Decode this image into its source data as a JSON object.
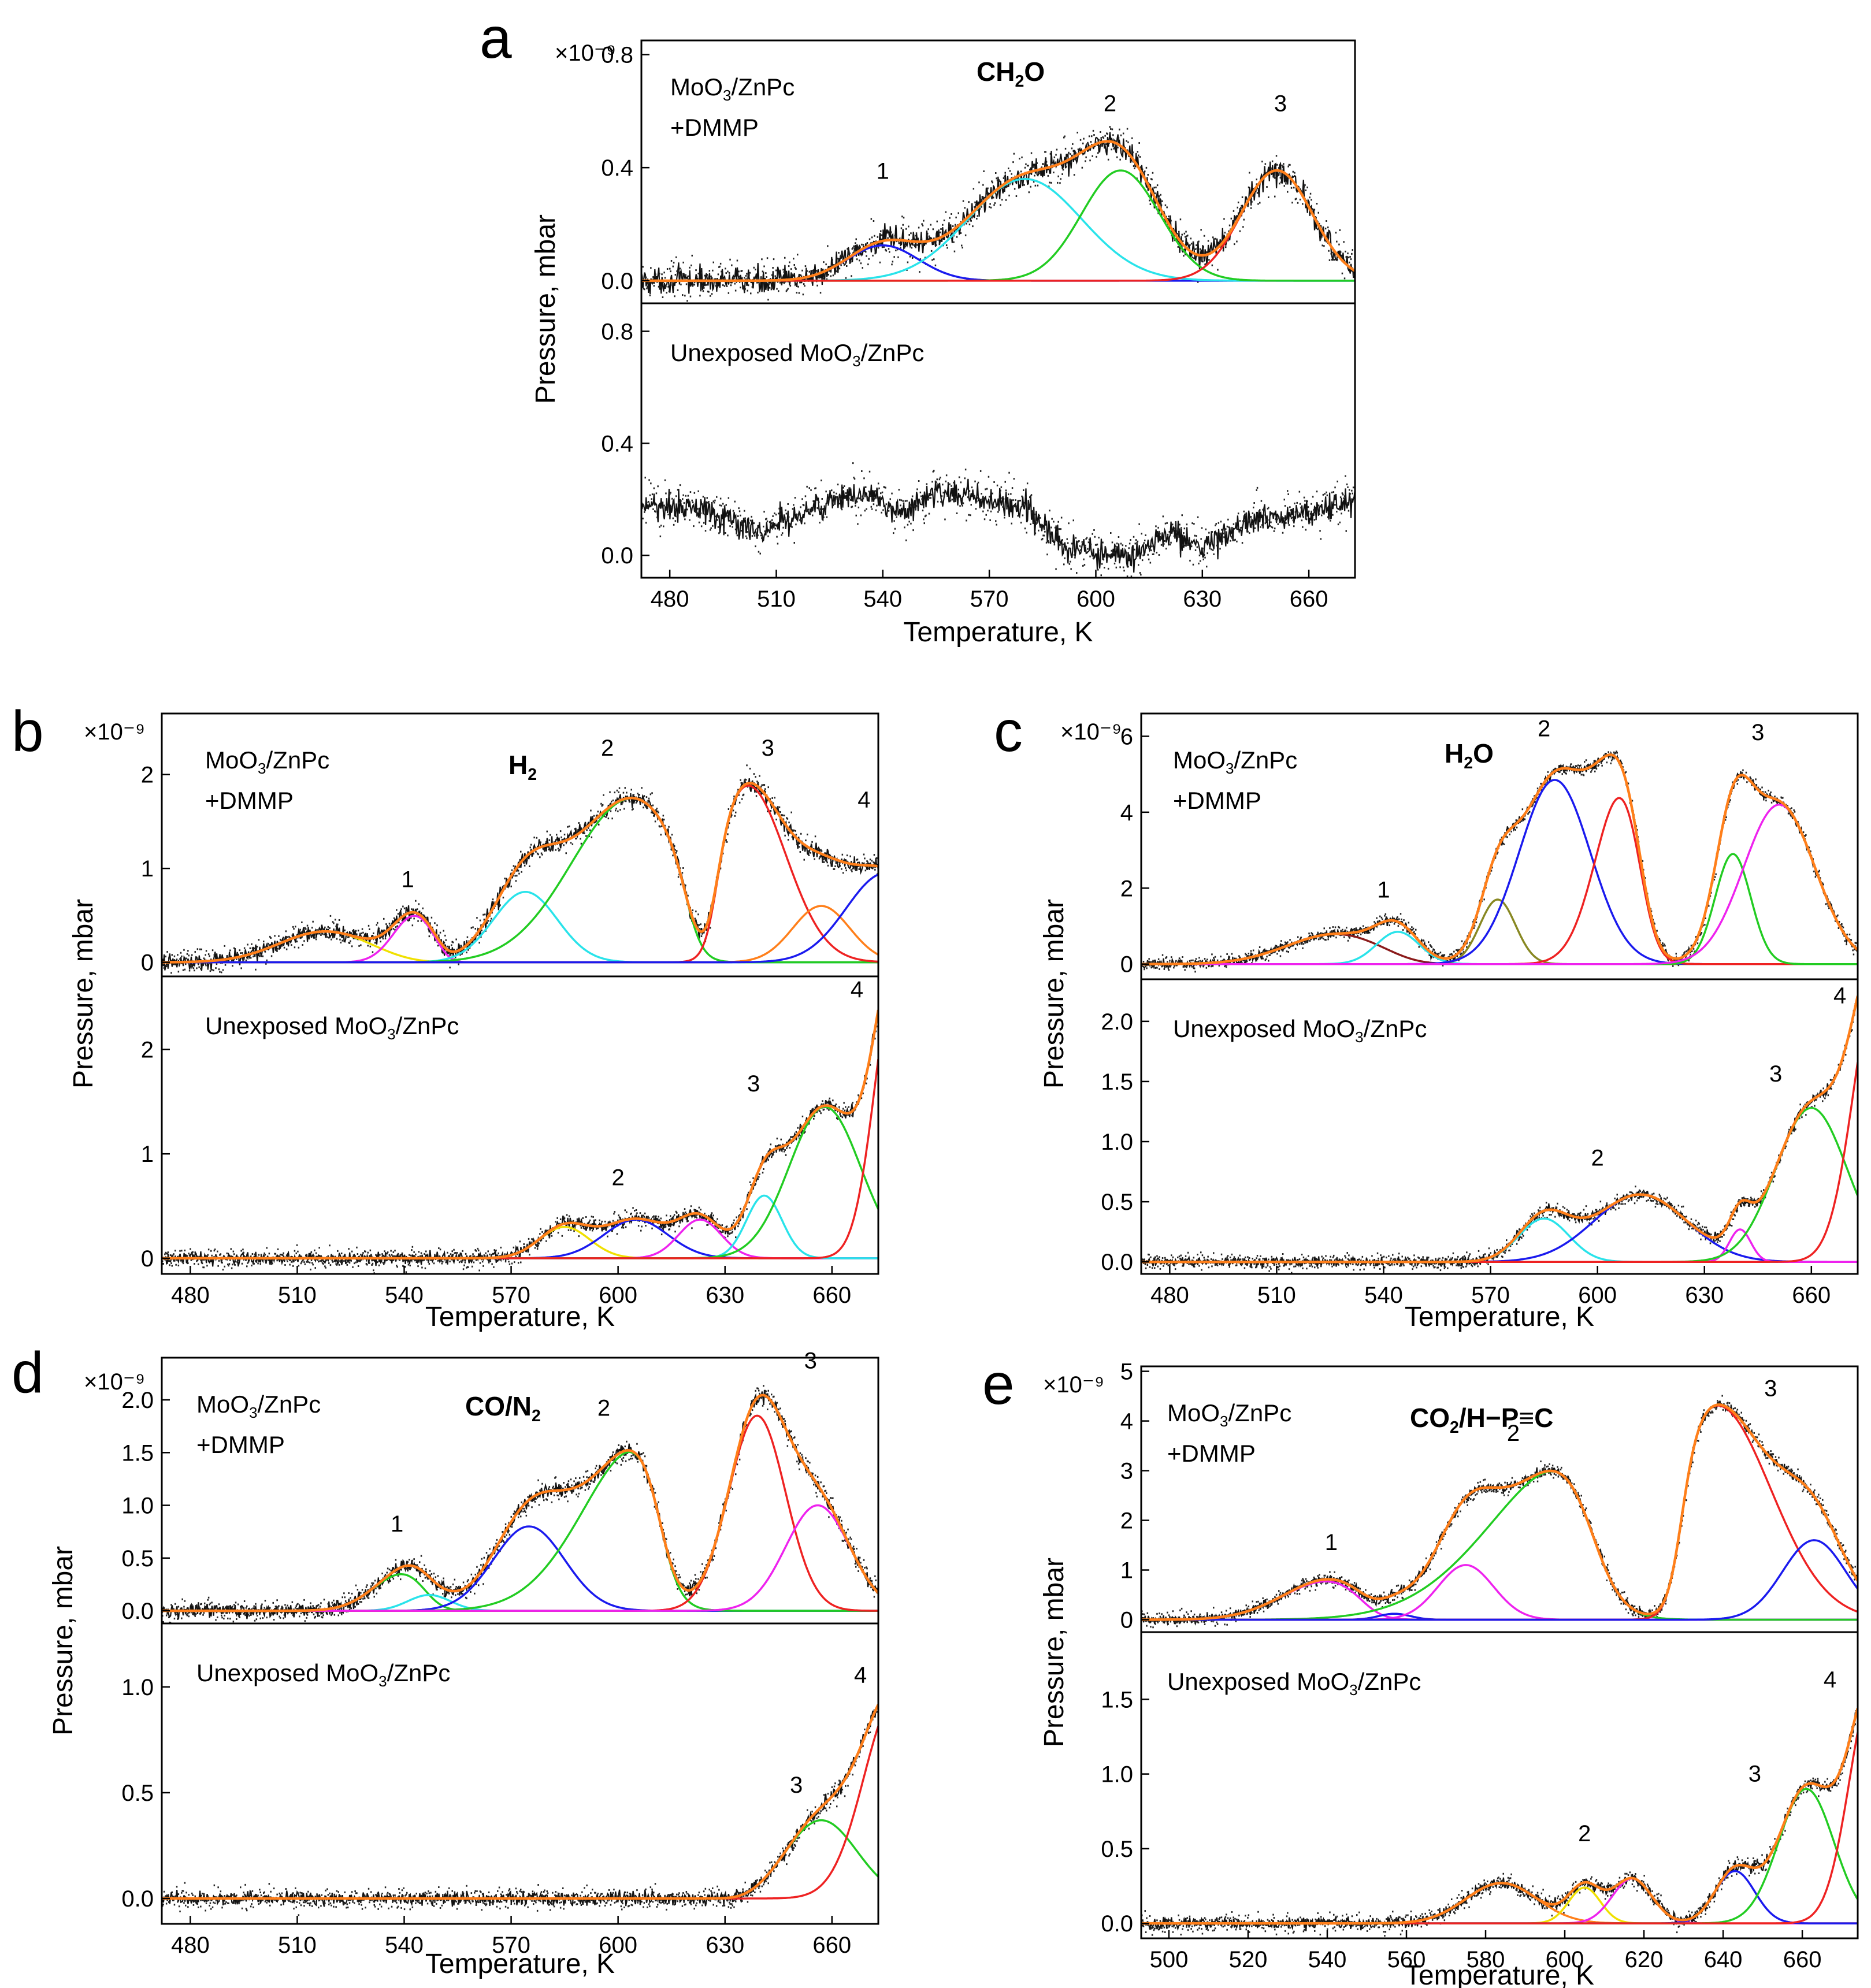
{
  "chart_data": [
    {
      "id": "a",
      "type": "line",
      "panel_letter": "a",
      "species": "CH₂O",
      "xlabel": "Temperature, K",
      "ylabel": "Pressure, mbar",
      "scale_note": "×10⁻⁹",
      "x_range": [
        472,
        673
      ],
      "x_ticks": [
        480,
        510,
        540,
        570,
        600,
        630,
        660
      ],
      "subplots": [
        {
          "label_lines": [
            "MoO₃/ZnPc",
            "+DMMP"
          ],
          "y_range": [
            -0.08,
            0.85
          ],
          "y_ticks": [
            0.0,
            0.4,
            0.8
          ],
          "y_tick_labels": [
            "0.0",
            "0.4",
            "0.8"
          ],
          "peak_labels": [
            {
              "text": "1",
              "x": 540,
              "y": 0.36
            },
            {
              "text": "2",
              "x": 604,
              "y": 0.6
            },
            {
              "text": "3",
              "x": 652,
              "y": 0.6
            }
          ],
          "components": [
            {
              "color": "#1a1aee",
              "center": 540,
              "height": 0.125,
              "width": 10
            },
            {
              "color": "#29e3ea",
              "center": 580,
              "height": 0.36,
              "width": 16
            },
            {
              "color": "#22cc22",
              "center": 607,
              "height": 0.39,
              "width": 11
            },
            {
              "color": "#ee2222",
              "center": 651,
              "height": 0.39,
              "width": 10
            }
          ],
          "noise": 0.07
        },
        {
          "label_lines": [
            "Unexposed MoO₃/ZnPc"
          ],
          "y_range": [
            -0.08,
            0.9
          ],
          "y_ticks": [
            0.0,
            0.4,
            0.8
          ],
          "y_tick_labels": [
            "0.0",
            "0.4",
            "0.8"
          ],
          "peak_labels": [],
          "components": [],
          "raw_trace": [
            [
              472,
              0.18
            ],
            [
              490,
              0.16
            ],
            [
              505,
              0.08
            ],
            [
              520,
              0.17
            ],
            [
              535,
              0.22
            ],
            [
              545,
              0.15
            ],
            [
              555,
              0.23
            ],
            [
              568,
              0.2
            ],
            [
              580,
              0.17
            ],
            [
              590,
              0.04
            ],
            [
              600,
              0.02
            ],
            [
              610,
              -0.01
            ],
            [
              620,
              0.08
            ],
            [
              630,
              0.03
            ],
            [
              645,
              0.13
            ],
            [
              660,
              0.15
            ],
            [
              673,
              0.2
            ]
          ],
          "noise": 0.08
        }
      ]
    },
    {
      "id": "b",
      "type": "line",
      "panel_letter": "b",
      "species": "H₂",
      "xlabel": "Temperature, K",
      "ylabel": "Pressure, mbar",
      "scale_note": "×10⁻⁹",
      "x_range": [
        472,
        673
      ],
      "x_ticks": [
        480,
        510,
        540,
        570,
        600,
        630,
        660
      ],
      "subplots": [
        {
          "label_lines": [
            "MoO₃/ZnPc",
            "+DMMP"
          ],
          "y_range": [
            -0.15,
            2.65
          ],
          "y_ticks": [
            0,
            1,
            2
          ],
          "y_tick_labels": [
            "0",
            "1",
            "2"
          ],
          "peak_labels": [
            {
              "text": "1",
              "x": 541,
              "y": 0.8
            },
            {
              "text": "2",
              "x": 597,
              "y": 2.2
            },
            {
              "text": "3",
              "x": 642,
              "y": 2.2
            },
            {
              "text": "4",
              "x": 669,
              "y": 1.65
            }
          ],
          "components": [
            {
              "color": "#f0e000",
              "center": 518,
              "height": 0.33,
              "width": 13,
              "edge": {
                "side": "right",
                "x": 545,
                "tau": 5
              }
            },
            {
              "color": "#ee22ee",
              "center": 543,
              "height": 0.5,
              "width": 6,
              "edge": {
                "side": "right",
                "x": 552,
                "tau": 2
              }
            },
            {
              "color": "#29e3ea",
              "center": 574,
              "height": 0.75,
              "width": 9
            },
            {
              "color": "#22cc22",
              "center": 604,
              "height": 1.75,
              "width": 17,
              "edge": {
                "side": "right",
                "x": 620,
                "tau": 2.5
              }
            },
            {
              "color": "#ee2222",
              "center": 636,
              "height": 1.9,
              "width": 11,
              "edge": {
                "side": "left",
                "x": 627,
                "tau": 2
              }
            },
            {
              "color": "#ff7f1a",
              "center": 657,
              "height": 0.6,
              "width": 8
            },
            {
              "color": "#1a1aee",
              "center": 675,
              "height": 0.95,
              "width": 11
            }
          ],
          "noise": 0.13
        },
        {
          "label_lines": [
            "Unexposed MoO₃/ZnPc"
          ],
          "y_range": [
            -0.15,
            2.7
          ],
          "y_ticks": [
            0,
            1,
            2
          ],
          "y_tick_labels": [
            "0",
            "1",
            "2"
          ],
          "peak_labels": [
            {
              "text": "2",
              "x": 600,
              "y": 0.7
            },
            {
              "text": "3",
              "x": 638,
              "y": 1.6
            },
            {
              "text": "4",
              "x": 667,
              "y": 2.5
            }
          ],
          "components": [
            {
              "color": "#f0e000",
              "center": 585,
              "height": 0.3,
              "width": 7
            },
            {
              "color": "#1a1aee",
              "center": 605,
              "height": 0.37,
              "width": 9
            },
            {
              "color": "#ee22ee",
              "center": 623,
              "height": 0.37,
              "width": 6
            },
            {
              "color": "#29e3ea",
              "center": 641,
              "height": 0.6,
              "width": 5
            },
            {
              "color": "#22cc22",
              "center": 658,
              "height": 1.45,
              "width": 10
            },
            {
              "color": "#ee2222",
              "center": 678,
              "height": 2.7,
              "width": 6
            }
          ],
          "noise": 0.09
        }
      ]
    },
    {
      "id": "c",
      "type": "line",
      "panel_letter": "c",
      "species": "H₂O",
      "xlabel": "Temperature, K",
      "ylabel": "Pressure, mbar",
      "scale_note": "×10⁻⁹",
      "x_range": [
        472,
        673
      ],
      "x_ticks": [
        480,
        510,
        540,
        570,
        600,
        630,
        660
      ],
      "subplots": [
        {
          "label_lines": [
            "MoO₃/ZnPc",
            "+DMMP"
          ],
          "y_range": [
            -0.4,
            6.6
          ],
          "y_ticks": [
            0,
            2,
            4,
            6
          ],
          "y_tick_labels": [
            "0",
            "2",
            "4",
            "6"
          ],
          "peak_labels": [
            {
              "text": "1",
              "x": 540,
              "y": 1.75
            },
            {
              "text": "2",
              "x": 585,
              "y": 6.0
            },
            {
              "text": "3",
              "x": 645,
              "y": 5.9
            }
          ],
          "components": [
            {
              "color": "#8b1a1a",
              "center": 527,
              "height": 0.8,
              "width": 14,
              "edge": {
                "side": "right",
                "x": 548,
                "tau": 5
              }
            },
            {
              "color": "#29e3ea",
              "center": 544,
              "height": 0.85,
              "width": 6
            },
            {
              "color": "#888822",
              "center": 572,
              "height": 1.7,
              "width": 5
            },
            {
              "color": "#1a1aee",
              "center": 588,
              "height": 4.85,
              "width": 10
            },
            {
              "color": "#ee2222",
              "center": 608,
              "height": 4.95,
              "width": 8,
              "edge": {
                "side": "right",
                "x": 613,
                "tau": 3
              }
            },
            {
              "color": "#22cc22",
              "center": 638,
              "height": 2.9,
              "width": 5
            },
            {
              "color": "#ee22ee",
              "center": 651,
              "height": 4.2,
              "width": 10
            }
          ],
          "noise": 0.18
        },
        {
          "label_lines": [
            "Unexposed MoO₃/ZnPc"
          ],
          "y_range": [
            -0.1,
            2.35
          ],
          "y_ticks": [
            0.0,
            0.5,
            1.0,
            1.5,
            2.0
          ],
          "y_tick_labels": [
            "0.0",
            "0.5",
            "1.0",
            "1.5",
            "2.0"
          ],
          "peak_labels": [
            {
              "text": "2",
              "x": 600,
              "y": 0.8
            },
            {
              "text": "3",
              "x": 650,
              "y": 1.5
            },
            {
              "text": "4",
              "x": 668,
              "y": 2.15
            }
          ],
          "components": [
            {
              "color": "#29e3ea",
              "center": 585,
              "height": 0.36,
              "width": 7
            },
            {
              "color": "#1a1aee",
              "center": 612,
              "height": 0.56,
              "width": 13
            },
            {
              "color": "#ee22ee",
              "center": 640,
              "height": 0.27,
              "width": 3
            },
            {
              "color": "#22cc22",
              "center": 660,
              "height": 1.28,
              "width": 10
            },
            {
              "color": "#ee2222",
              "center": 679,
              "height": 2.4,
              "width": 7
            }
          ],
          "noise": 0.06
        }
      ]
    },
    {
      "id": "d",
      "type": "line",
      "panel_letter": "d",
      "species": "CO/N₂",
      "xlabel": "Temperature, K",
      "ylabel": "Pressure, mbar",
      "scale_note": "×10⁻⁹",
      "x_range": [
        472,
        673
      ],
      "x_ticks": [
        480,
        510,
        540,
        570,
        600,
        630,
        660
      ],
      "subplots": [
        {
          "label_lines": [
            "MoO₃/ZnPc",
            "+DMMP"
          ],
          "y_range": [
            -0.12,
            2.4
          ],
          "y_ticks": [
            0.0,
            0.5,
            1.0,
            1.5,
            2.0
          ],
          "y_tick_labels": [
            "0.0",
            "0.5",
            "1.0",
            "1.5",
            "2.0"
          ],
          "peak_labels": [
            {
              "text": "1",
              "x": 538,
              "y": 0.75
            },
            {
              "text": "2",
              "x": 596,
              "y": 1.85
            },
            {
              "text": "3",
              "x": 654,
              "y": 2.3
            }
          ],
          "components": [
            {
              "color": "#22cc22",
              "center": 541,
              "height": 0.38,
              "width": 9,
              "edge": {
                "side": "right",
                "x": 547,
                "tau": 3
              }
            },
            {
              "color": "#29e3ea",
              "center": 547,
              "height": 0.15,
              "width": 6
            },
            {
              "color": "#1a1aee",
              "center": 575,
              "height": 0.8,
              "width": 10
            },
            {
              "color": "#22cc22",
              "center": 608,
              "height": 1.65,
              "width": 17,
              "edge": {
                "side": "right",
                "x": 612,
                "tau": 3
              }
            },
            {
              "color": "#ee2222",
              "center": 639,
              "height": 1.85,
              "width": 8
            },
            {
              "color": "#ee22ee",
              "center": 656,
              "height": 1.0,
              "width": 9
            }
          ],
          "noise": 0.1
        },
        {
          "label_lines": [
            "Unexposed MoO₃/ZnPc"
          ],
          "y_range": [
            -0.12,
            1.3
          ],
          "y_ticks": [
            0.0,
            0.5,
            1.0
          ],
          "y_tick_labels": [
            "0.0",
            "0.5",
            "1.0"
          ],
          "peak_labels": [
            {
              "text": "3",
              "x": 650,
              "y": 0.5
            },
            {
              "text": "4",
              "x": 668,
              "y": 1.02
            }
          ],
          "components": [
            {
              "color": "#22cc22",
              "center": 657,
              "height": 0.37,
              "width": 10,
              "edge": {
                "side": "left",
                "x": 634,
                "tau": 3
              }
            },
            {
              "color": "#ee2222",
              "center": 678,
              "height": 0.95,
              "width": 9
            }
          ],
          "noise": 0.05
        }
      ]
    },
    {
      "id": "e",
      "type": "line",
      "panel_letter": "e",
      "species": "CO₂/H−P≡C",
      "xlabel": "Temperature, K",
      "ylabel": "Pressure, mbar",
      "scale_note": "×10⁻⁹",
      "x_range": [
        493,
        674
      ],
      "x_ticks": [
        500,
        520,
        540,
        560,
        580,
        600,
        620,
        640,
        660
      ],
      "subplots": [
        {
          "label_lines": [
            "MoO₃/ZnPc",
            "+DMMP"
          ],
          "y_range": [
            -0.25,
            5.1
          ],
          "y_ticks": [
            0,
            1,
            2,
            3,
            4,
            5
          ],
          "y_tick_labels": [
            "0",
            "1",
            "2",
            "3",
            "4",
            "5"
          ],
          "peak_labels": [
            {
              "text": "1",
              "x": 541,
              "y": 1.4
            },
            {
              "text": "2",
              "x": 587,
              "y": 3.6
            },
            {
              "text": "3",
              "x": 652,
              "y": 4.5
            }
          ],
          "components": [
            {
              "color": "#ee22ee",
              "center": 541,
              "height": 0.8,
              "width": 12,
              "edge": {
                "side": "right",
                "x": 550,
                "tau": 3
              }
            },
            {
              "color": "#1a1aee",
              "center": 557,
              "height": 0.12,
              "width": 4
            },
            {
              "color": "#ee22ee",
              "center": 575,
              "height": 1.1,
              "width": 7
            },
            {
              "color": "#22cc22",
              "center": 605,
              "height": 3.45,
              "width": 22,
              "edge": {
                "side": "right",
                "x": 607,
                "tau": 4
              }
            },
            {
              "color": "#ee2222",
              "center": 638,
              "height": 4.35,
              "width": 14,
              "edge": {
                "side": "left",
                "x": 629,
                "tau": 2
              }
            },
            {
              "color": "#1a1aee",
              "center": 663,
              "height": 1.6,
              "width": 8
            }
          ],
          "noise": 0.15
        },
        {
          "label_lines": [
            "Unexposed MoO₃/ZnPc"
          ],
          "y_range": [
            -0.1,
            1.95
          ],
          "y_ticks": [
            0.0,
            0.5,
            1.0,
            1.5
          ],
          "y_tick_labels": [
            "0.0",
            "0.5",
            "1.0",
            "1.5"
          ],
          "peak_labels": [
            {
              "text": "2",
              "x": 605,
              "y": 0.55
            },
            {
              "text": "3",
              "x": 648,
              "y": 0.95
            },
            {
              "text": "4",
              "x": 667,
              "y": 1.58
            }
          ],
          "components": [
            {
              "color": "#ff7f1a",
              "center": 584,
              "height": 0.27,
              "width": 9
            },
            {
              "color": "#f0e000",
              "center": 605,
              "height": 0.24,
              "width": 4
            },
            {
              "color": "#ee22ee",
              "center": 617,
              "height": 0.3,
              "width": 5
            },
            {
              "color": "#1a1aee",
              "center": 643,
              "height": 0.35,
              "width": 5
            },
            {
              "color": "#22cc22",
              "center": 661,
              "height": 0.9,
              "width": 7
            },
            {
              "color": "#ee2222",
              "center": 678,
              "height": 1.6,
              "width": 6
            }
          ],
          "noise": 0.06
        }
      ]
    }
  ]
}
